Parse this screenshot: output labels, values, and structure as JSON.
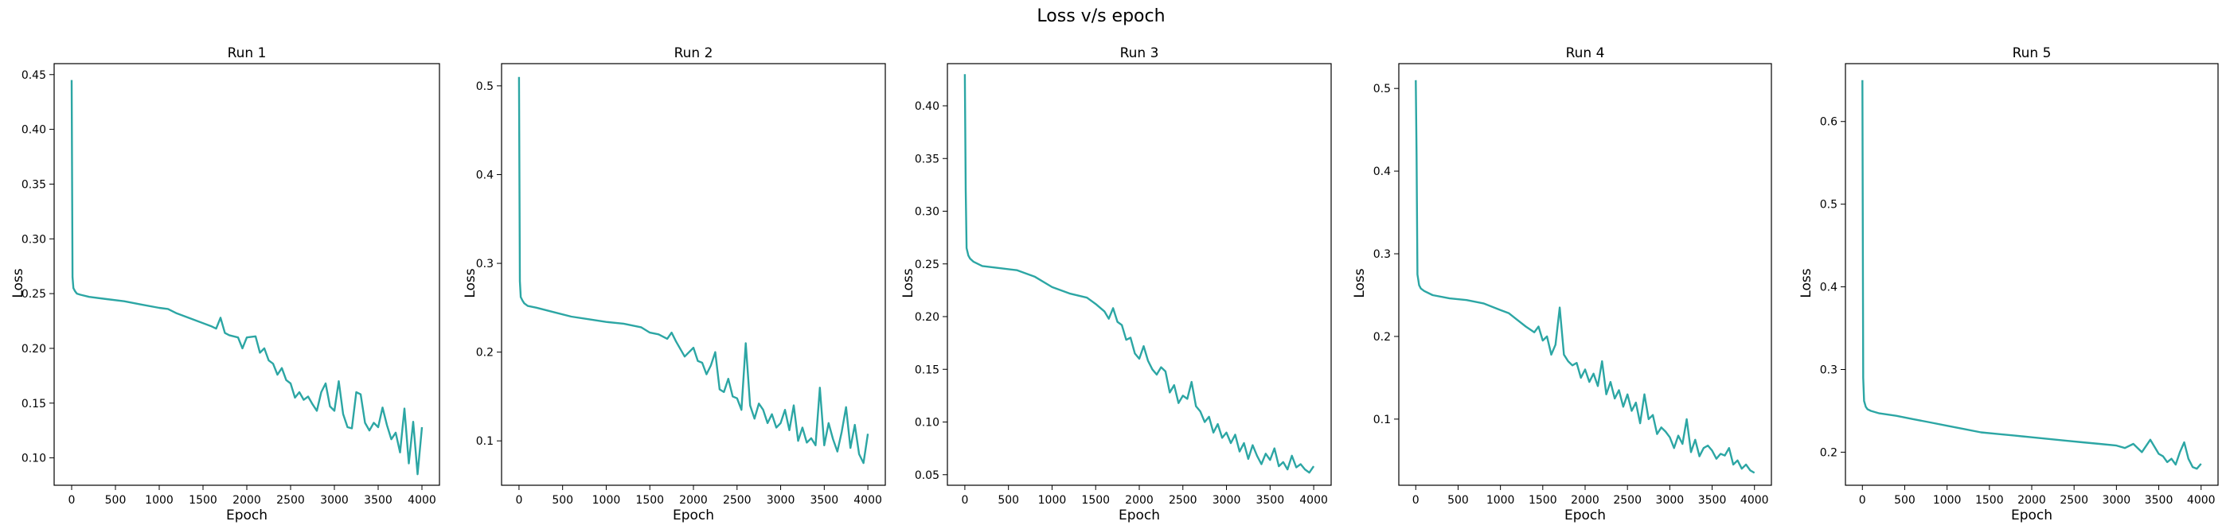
{
  "figure": {
    "suptitle": "Loss v/s epoch",
    "line_color": "#2ca6a4"
  },
  "chart_data": [
    {
      "type": "line",
      "title": "Run 1",
      "xlabel": "Epoch",
      "ylabel": "Loss",
      "xlim": [
        -200,
        4200
      ],
      "ylim": [
        0.075,
        0.46
      ],
      "xticks": [
        0,
        500,
        1000,
        1500,
        2000,
        2500,
        3000,
        3500,
        4000
      ],
      "xtick_labels": [
        "0",
        "500",
        "1000",
        "1500",
        "2000",
        "2500",
        "3000",
        "3500",
        "4000"
      ],
      "yticks": [
        0.1,
        0.15,
        0.2,
        0.25,
        0.3,
        0.35,
        0.4,
        0.45
      ],
      "ytick_labels": [
        "0.10",
        "0.15",
        "0.20",
        "0.25",
        "0.30",
        "0.35",
        "0.40",
        "0.45"
      ],
      "series": [
        {
          "x": [
            0,
            10,
            20,
            40,
            60,
            100,
            200,
            400,
            600,
            800,
            1000,
            1100,
            1200,
            1400,
            1600,
            1650,
            1700,
            1750,
            1800,
            1900,
            1950,
            2000,
            2100,
            2150,
            2200,
            2250,
            2300,
            2350,
            2400,
            2450,
            2500,
            2550,
            2600,
            2650,
            2700,
            2750,
            2800,
            2850,
            2900,
            2950,
            3000,
            3050,
            3100,
            3150,
            3200,
            3250,
            3300,
            3350,
            3400,
            3450,
            3500,
            3550,
            3600,
            3650,
            3700,
            3750,
            3800,
            3850,
            3900,
            3950,
            4000
          ],
          "y": [
            0.445,
            0.265,
            0.255,
            0.252,
            0.25,
            0.249,
            0.247,
            0.245,
            0.243,
            0.24,
            0.237,
            0.236,
            0.232,
            0.226,
            0.22,
            0.218,
            0.228,
            0.214,
            0.212,
            0.21,
            0.2,
            0.21,
            0.211,
            0.196,
            0.2,
            0.189,
            0.186,
            0.176,
            0.182,
            0.171,
            0.168,
            0.155,
            0.16,
            0.153,
            0.156,
            0.149,
            0.143,
            0.16,
            0.168,
            0.147,
            0.143,
            0.17,
            0.14,
            0.128,
            0.127,
            0.16,
            0.158,
            0.132,
            0.125,
            0.132,
            0.128,
            0.146,
            0.13,
            0.117,
            0.123,
            0.105,
            0.145,
            0.095,
            0.133,
            0.085,
            0.128
          ]
        }
      ]
    },
    {
      "type": "line",
      "title": "Run 2",
      "xlabel": "Epoch",
      "ylabel": "Loss",
      "xlim": [
        -200,
        4200
      ],
      "ylim": [
        0.05,
        0.525
      ],
      "xticks": [
        0,
        500,
        1000,
        1500,
        2000,
        2500,
        3000,
        3500,
        4000
      ],
      "xtick_labels": [
        "0",
        "500",
        "1000",
        "1500",
        "2000",
        "2500",
        "3000",
        "3500",
        "4000"
      ],
      "yticks": [
        0.1,
        0.2,
        0.3,
        0.4,
        0.5
      ],
      "ytick_labels": [
        "0.1",
        "0.2",
        "0.3",
        "0.4",
        "0.5"
      ],
      "series": [
        {
          "x": [
            0,
            10,
            20,
            40,
            60,
            100,
            200,
            400,
            600,
            800,
            1000,
            1200,
            1400,
            1500,
            1600,
            1700,
            1750,
            1800,
            1900,
            2000,
            2050,
            2100,
            2150,
            2200,
            2250,
            2300,
            2350,
            2400,
            2450,
            2500,
            2550,
            2600,
            2650,
            2700,
            2750,
            2800,
            2850,
            2900,
            2950,
            3000,
            3050,
            3100,
            3150,
            3200,
            3250,
            3300,
            3350,
            3400,
            3450,
            3500,
            3550,
            3600,
            3650,
            3700,
            3750,
            3800,
            3850,
            3900,
            3950,
            4000
          ],
          "y": [
            0.51,
            0.28,
            0.262,
            0.258,
            0.255,
            0.252,
            0.25,
            0.245,
            0.24,
            0.237,
            0.234,
            0.232,
            0.228,
            0.222,
            0.22,
            0.215,
            0.222,
            0.212,
            0.195,
            0.205,
            0.19,
            0.188,
            0.175,
            0.185,
            0.2,
            0.158,
            0.155,
            0.17,
            0.15,
            0.148,
            0.135,
            0.21,
            0.14,
            0.125,
            0.142,
            0.135,
            0.12,
            0.13,
            0.115,
            0.12,
            0.135,
            0.112,
            0.14,
            0.1,
            0.115,
            0.098,
            0.103,
            0.095,
            0.16,
            0.095,
            0.12,
            0.102,
            0.088,
            0.11,
            0.138,
            0.092,
            0.118,
            0.085,
            0.075,
            0.108
          ]
        }
      ]
    },
    {
      "type": "line",
      "title": "Run 3",
      "xlabel": "Epoch",
      "ylabel": "Loss",
      "xlim": [
        -200,
        4200
      ],
      "ylim": [
        0.04,
        0.44
      ],
      "xticks": [
        0,
        500,
        1000,
        1500,
        2000,
        2500,
        3000,
        3500,
        4000
      ],
      "xtick_labels": [
        "0",
        "500",
        "1000",
        "1500",
        "2000",
        "2500",
        "3000",
        "3500",
        "4000"
      ],
      "yticks": [
        0.05,
        0.1,
        0.15,
        0.2,
        0.25,
        0.3,
        0.35,
        0.4
      ],
      "ytick_labels": [
        "0.05",
        "0.10",
        "0.15",
        "0.20",
        "0.25",
        "0.30",
        "0.35",
        "0.40"
      ],
      "series": [
        {
          "x": [
            0,
            10,
            20,
            40,
            60,
            100,
            200,
            400,
            600,
            800,
            1000,
            1200,
            1400,
            1500,
            1600,
            1650,
            1700,
            1750,
            1800,
            1850,
            1900,
            1950,
            2000,
            2050,
            2100,
            2150,
            2200,
            2250,
            2300,
            2350,
            2400,
            2450,
            2500,
            2550,
            2600,
            2650,
            2700,
            2750,
            2800,
            2850,
            2900,
            2950,
            3000,
            3050,
            3100,
            3150,
            3200,
            3250,
            3300,
            3350,
            3400,
            3450,
            3500,
            3550,
            3600,
            3650,
            3700,
            3750,
            3800,
            3850,
            3900,
            3950,
            4000
          ],
          "y": [
            0.43,
            0.32,
            0.265,
            0.258,
            0.255,
            0.252,
            0.248,
            0.246,
            0.244,
            0.238,
            0.228,
            0.222,
            0.218,
            0.212,
            0.205,
            0.198,
            0.208,
            0.195,
            0.192,
            0.178,
            0.18,
            0.165,
            0.16,
            0.172,
            0.158,
            0.15,
            0.145,
            0.152,
            0.148,
            0.128,
            0.135,
            0.118,
            0.125,
            0.122,
            0.138,
            0.115,
            0.11,
            0.1,
            0.105,
            0.09,
            0.098,
            0.085,
            0.09,
            0.08,
            0.088,
            0.072,
            0.08,
            0.065,
            0.078,
            0.068,
            0.06,
            0.07,
            0.064,
            0.075,
            0.058,
            0.062,
            0.055,
            0.068,
            0.057,
            0.06,
            0.055,
            0.052,
            0.058
          ]
        }
      ]
    },
    {
      "type": "line",
      "title": "Run 4",
      "xlabel": "Epoch",
      "ylabel": "Loss",
      "xlim": [
        -200,
        4200
      ],
      "ylim": [
        0.02,
        0.53
      ],
      "xticks": [
        0,
        500,
        1000,
        1500,
        2000,
        2500,
        3000,
        3500,
        4000
      ],
      "xtick_labels": [
        "0",
        "500",
        "1000",
        "1500",
        "2000",
        "2500",
        "3000",
        "3500",
        "4000"
      ],
      "yticks": [
        0.1,
        0.2,
        0.3,
        0.4,
        0.5
      ],
      "ytick_labels": [
        "0.1",
        "0.2",
        "0.3",
        "0.4",
        "0.5"
      ],
      "series": [
        {
          "x": [
            0,
            10,
            20,
            40,
            60,
            100,
            200,
            400,
            600,
            800,
            1000,
            1100,
            1200,
            1300,
            1400,
            1450,
            1500,
            1550,
            1600,
            1650,
            1700,
            1750,
            1800,
            1850,
            1900,
            1950,
            2000,
            2050,
            2100,
            2150,
            2200,
            2250,
            2300,
            2350,
            2400,
            2450,
            2500,
            2550,
            2600,
            2650,
            2700,
            2750,
            2800,
            2850,
            2900,
            2950,
            3000,
            3050,
            3100,
            3150,
            3200,
            3250,
            3300,
            3350,
            3400,
            3450,
            3500,
            3550,
            3600,
            3650,
            3700,
            3750,
            3800,
            3850,
            3900,
            3950,
            4000
          ],
          "y": [
            0.51,
            0.42,
            0.275,
            0.262,
            0.258,
            0.255,
            0.25,
            0.246,
            0.244,
            0.24,
            0.232,
            0.228,
            0.22,
            0.212,
            0.205,
            0.212,
            0.195,
            0.2,
            0.178,
            0.19,
            0.235,
            0.178,
            0.17,
            0.165,
            0.168,
            0.15,
            0.16,
            0.145,
            0.155,
            0.14,
            0.17,
            0.13,
            0.145,
            0.125,
            0.135,
            0.115,
            0.13,
            0.11,
            0.12,
            0.095,
            0.13,
            0.1,
            0.105,
            0.082,
            0.09,
            0.085,
            0.078,
            0.065,
            0.08,
            0.07,
            0.1,
            0.06,
            0.075,
            0.055,
            0.065,
            0.068,
            0.062,
            0.052,
            0.058,
            0.056,
            0.065,
            0.045,
            0.05,
            0.04,
            0.045,
            0.038,
            0.035
          ]
        }
      ]
    },
    {
      "type": "line",
      "title": "Run 5",
      "xlabel": "Epoch",
      "ylabel": "Loss",
      "xlim": [
        -200,
        4200
      ],
      "ylim": [
        0.16,
        0.67
      ],
      "xticks": [
        0,
        500,
        1000,
        1500,
        2000,
        2500,
        3000,
        3500,
        4000
      ],
      "xtick_labels": [
        "0",
        "500",
        "1000",
        "1500",
        "2000",
        "2500",
        "3000",
        "3500",
        "4000"
      ],
      "yticks": [
        0.2,
        0.3,
        0.4,
        0.5,
        0.6
      ],
      "ytick_labels": [
        "0.2",
        "0.3",
        "0.4",
        "0.5",
        "0.6"
      ],
      "series": [
        {
          "x": [
            0,
            10,
            20,
            40,
            60,
            100,
            200,
            400,
            600,
            800,
            1000,
            1200,
            1400,
            1600,
            1800,
            2000,
            2200,
            2400,
            2600,
            2800,
            3000,
            3100,
            3200,
            3300,
            3400,
            3500,
            3550,
            3600,
            3650,
            3700,
            3750,
            3800,
            3850,
            3900,
            3950,
            4000
          ],
          "y": [
            0.65,
            0.29,
            0.262,
            0.255,
            0.252,
            0.25,
            0.247,
            0.244,
            0.24,
            0.236,
            0.232,
            0.228,
            0.224,
            0.222,
            0.22,
            0.218,
            0.216,
            0.214,
            0.212,
            0.21,
            0.208,
            0.205,
            0.21,
            0.2,
            0.215,
            0.198,
            0.195,
            0.188,
            0.192,
            0.185,
            0.2,
            0.212,
            0.192,
            0.182,
            0.18,
            0.186
          ]
        }
      ]
    }
  ]
}
